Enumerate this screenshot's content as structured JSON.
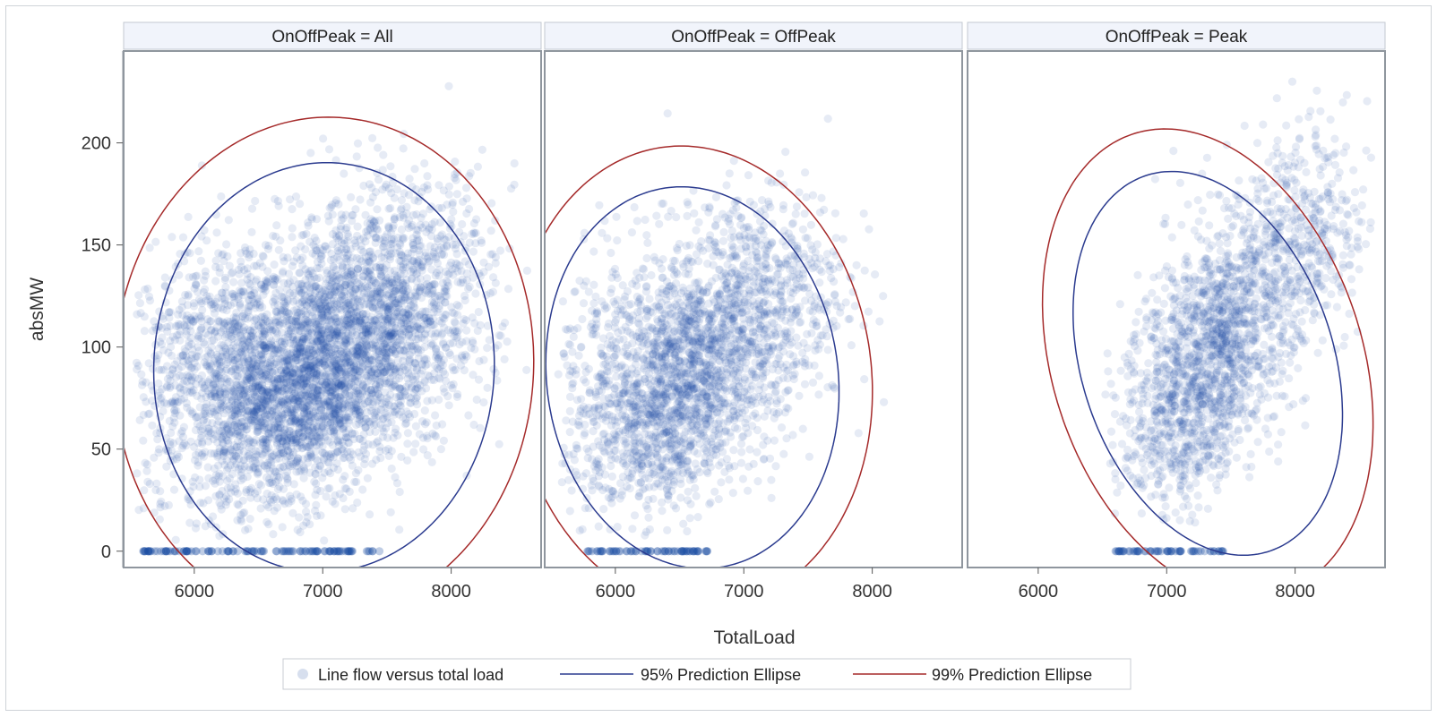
{
  "chart_data": {
    "type": "scatter",
    "panel_variable": "OnOffPeak",
    "panels": [
      {
        "label": "OnOffPeak = All",
        "n_points": 5000,
        "scatter": {
          "cluster_centers": [
            [
              6300,
              95
            ],
            [
              7100,
              90
            ],
            [
              6700,
              70
            ],
            [
              7500,
              120
            ]
          ],
          "spread_x": [
            550,
            450,
            350,
            400
          ],
          "spread_y": [
            30,
            28,
            25,
            30
          ],
          "x_range": [
            5550,
            8600
          ],
          "y_range": [
            5,
            235
          ],
          "zero_x_range": [
            5600,
            7450
          ],
          "n_zero": 120
        },
        "ellipse95": {
          "cx": 7010,
          "cy": 90,
          "rx": 1330,
          "ry": 100,
          "angle_deg": 22
        },
        "ellipse99": {
          "cx": 7010,
          "cy": 90,
          "rx": 1640,
          "ry": 122,
          "angle_deg": 22
        }
      },
      {
        "label": "OnOffPeak = OffPeak",
        "n_points": 2800,
        "scatter": {
          "cluster_centers": [
            [
              6200,
              90
            ],
            [
              6700,
              95
            ],
            [
              6400,
              65
            ],
            [
              7100,
              120
            ]
          ],
          "spread_x": [
            400,
            350,
            300,
            350
          ],
          "spread_y": [
            30,
            28,
            25,
            30
          ],
          "x_range": [
            5550,
            8250
          ],
          "y_range": [
            5,
            225
          ],
          "zero_x_range": [
            5780,
            6780
          ],
          "n_zero": 70
        },
        "ellipse95": {
          "cx": 6600,
          "cy": 85,
          "rx": 1120,
          "ry": 95,
          "angle_deg": 25
        },
        "ellipse99": {
          "cx": 6600,
          "cy": 85,
          "rx": 1380,
          "ry": 115,
          "angle_deg": 25
        }
      },
      {
        "label": "OnOffPeak = Peak",
        "n_points": 2200,
        "scatter": {
          "cluster_centers": [
            [
              7300,
              95
            ],
            [
              7500,
              110
            ],
            [
              7100,
              70
            ],
            [
              8000,
              150
            ]
          ],
          "spread_x": [
            280,
            250,
            230,
            280
          ],
          "spread_y": [
            30,
            26,
            25,
            30
          ],
          "x_range": [
            6500,
            8600
          ],
          "y_range": [
            10,
            235
          ],
          "zero_x_range": [
            6600,
            7450
          ],
          "n_zero": 60
        },
        "ellipse95": {
          "cx": 7320,
          "cy": 92,
          "rx": 950,
          "ry": 100,
          "angle_deg": 30
        },
        "ellipse99": {
          "cx": 7320,
          "cy": 92,
          "rx": 1170,
          "ry": 122,
          "angle_deg": 30
        }
      }
    ],
    "x_axis": {
      "label": "TotalLoad",
      "range": [
        5450,
        8700
      ],
      "ticks": [
        6000,
        7000,
        8000
      ]
    },
    "y_axis": {
      "label": "absMW",
      "range": [
        -8,
        245
      ],
      "ticks": [
        0,
        50,
        100,
        150,
        200
      ]
    },
    "legend": {
      "placement": "bottom",
      "items": [
        {
          "name": "Line flow versus total load",
          "kind": "marker",
          "color": "#1f4e9e"
        },
        {
          "name": "95% Prediction Ellipse",
          "kind": "line",
          "color": "#2b3b8f"
        },
        {
          "name": "99% Prediction Ellipse",
          "kind": "line",
          "color": "#a52a2a"
        }
      ]
    },
    "colors": {
      "points": "#1a4aa0",
      "ellipse95": "#2b3b8f",
      "ellipse99": "#a52a2a",
      "panel_header_bg": "#f1f4fb",
      "frame": "#8f969e"
    }
  }
}
